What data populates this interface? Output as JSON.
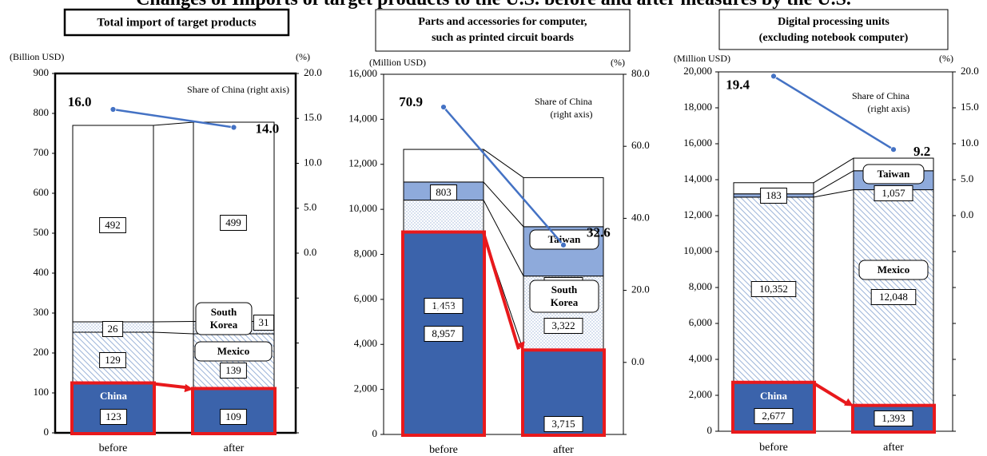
{
  "page_title": "Changes of Imports of target products to the U.S. before and after measures by the U.S.",
  "colors": {
    "china": "#3b63ab",
    "mexico_hatch": "#9bb3d8",
    "south_korea_dots": "#9bb3d8",
    "taiwan": "#8eaadb",
    "other": "#ffffff",
    "highlight": "#e8191c",
    "share_line": "#4472c4"
  },
  "chart_data": [
    {
      "type": "bar",
      "stacked": true,
      "title": "Total import of target products",
      "y_unit_label": "(Billion USD)",
      "y2_unit_label": "(%)",
      "categories": [
        "before",
        "after"
      ],
      "ylim": [
        0,
        900
      ],
      "y_ticks": [
        "0",
        "100",
        "200",
        "300",
        "400",
        "500",
        "600",
        "700",
        "800",
        "900"
      ],
      "y2_ticks": [
        "0.0",
        "5.0",
        "10.0",
        "15.0",
        "20.0"
      ],
      "series": [
        {
          "key": "china",
          "values": [
            123,
            109
          ],
          "value_labels": [
            "123",
            "109"
          ]
        },
        {
          "key": "mexico",
          "values": [
            129,
            139
          ],
          "value_labels": [
            "129",
            "139"
          ]
        },
        {
          "key": "south_korea",
          "values": [
            26,
            31
          ],
          "value_labels": [
            "26",
            "31"
          ]
        },
        {
          "key": "other",
          "values": [
            492,
            499
          ],
          "value_labels": [
            "492",
            "499"
          ]
        }
      ],
      "segment_names": {
        "china": "China",
        "mexico": "Mexico",
        "south_korea": "South Korea"
      },
      "share_of_china": {
        "label": "Share of China (right axis)",
        "values": [
          16.0,
          14.0
        ],
        "value_labels": [
          "16.0",
          "14.0"
        ],
        "y2lim": [
          -20,
          20
        ]
      }
    },
    {
      "type": "bar",
      "stacked": true,
      "title": "Parts and accessories for computer, such as printed circuit boards",
      "y_unit_label": "(Million USD)",
      "y2_unit_label": "(%)",
      "categories": [
        "before",
        "after"
      ],
      "ylim": [
        0,
        16000
      ],
      "y_ticks": [
        "0",
        "2,000",
        "4,000",
        "6,000",
        "8,000",
        "10,000",
        "12,000",
        "14,000",
        "16,000"
      ],
      "y2_ticks": [
        "0.0",
        "20.0",
        "40.0",
        "60.0",
        "80.0"
      ],
      "series": [
        {
          "key": "china",
          "values": [
            8957,
            3715
          ],
          "value_labels": [
            "8,957",
            "3,715"
          ]
        },
        {
          "key": "south_korea",
          "values": [
            1453,
            3322
          ],
          "value_labels": [
            "1,453",
            "3,322"
          ]
        },
        {
          "key": "taiwan",
          "values": [
            803,
            2192
          ],
          "value_labels": [
            "803",
            "2,192"
          ]
        },
        {
          "key": "other",
          "values": [
            1450,
            2180
          ],
          "value_labels": [
            "",
            ""
          ]
        }
      ],
      "segment_names": {
        "china": "China",
        "south_korea": "South Korea",
        "taiwan": "Taiwan"
      },
      "share_of_china": {
        "label": "Share of China (right axis)",
        "values": [
          70.9,
          32.6
        ],
        "value_labels": [
          "70.9",
          "32.6"
        ],
        "y2lim": [
          -20,
          80
        ]
      }
    },
    {
      "type": "bar",
      "stacked": true,
      "title": "Digital processing units (excluding notebook computer)",
      "y_unit_label": "(Million USD)",
      "y2_unit_label": "(%)",
      "categories": [
        "before",
        "after"
      ],
      "ylim": [
        0,
        20000
      ],
      "y_ticks": [
        "0",
        "2,000",
        "4,000",
        "6,000",
        "8,000",
        "10,000",
        "12,000",
        "14,000",
        "16,000",
        "18,000",
        "20,000"
      ],
      "y2_ticks": [
        "0.0",
        "5.0",
        "10.0",
        "15.0",
        "20.0"
      ],
      "series": [
        {
          "key": "china",
          "values": [
            2677,
            1393
          ],
          "value_labels": [
            "2,677",
            "1,393"
          ]
        },
        {
          "key": "mexico",
          "values": [
            10352,
            12048
          ],
          "value_labels": [
            "10,352",
            "12,048"
          ]
        },
        {
          "key": "taiwan",
          "values": [
            183,
            1057
          ],
          "value_labels": [
            "183",
            "1,057"
          ]
        },
        {
          "key": "other",
          "values": [
            620,
            700
          ],
          "value_labels": [
            "",
            ""
          ]
        }
      ],
      "segment_names": {
        "china": "China",
        "mexico": "Mexico",
        "taiwan": "Taiwan"
      },
      "share_of_china": {
        "label": "Share of China (right axis)",
        "values": [
          19.4,
          9.2
        ],
        "value_labels": [
          "19.4",
          "9.2"
        ],
        "y2lim": [
          -30,
          20
        ]
      }
    }
  ]
}
